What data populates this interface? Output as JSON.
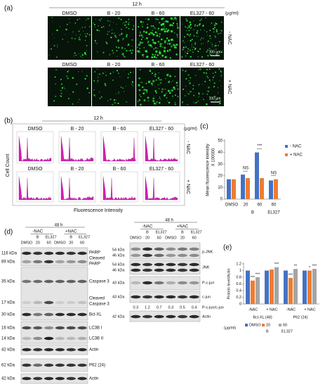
{
  "panels": {
    "a": {
      "label": "(a)",
      "time": "12 h",
      "columns": [
        "DMSO",
        "B - 20",
        "B - 60",
        "EL327 - 60"
      ],
      "unit": "(µg/ml)",
      "rows": [
        "- NAC",
        "+ NAC"
      ],
      "scale_bar": "100 µm"
    },
    "b": {
      "label": "(b)",
      "time": "12 h",
      "columns": [
        "DMSO",
        "B - 20",
        "B - 60",
        "EL327 - 60"
      ],
      "unit": "(µg/ml)",
      "rows": [
        "- NAC",
        "+ NAC"
      ],
      "y_label": "Cell Count",
      "x_label": "Fluorescence Intensity"
    },
    "c": {
      "label": "(c)"
    },
    "d": {
      "label": "(d)",
      "left": {
        "time": "48 h",
        "groups": [
          "-NAC",
          "+NAC"
        ],
        "treatments": [
          "B",
          "EL327"
        ],
        "lanes": [
          "DMSO",
          "20",
          "60",
          "DMSO",
          "20",
          "60"
        ],
        "kda": [
          "116 kDa",
          "89 kDa",
          "35 kDa",
          "17 kDa",
          "30 kDa",
          "16 kDa",
          "14 kDa",
          "42 kDa",
          "62 kDa",
          "42 kDa"
        ],
        "proteins": [
          "PARP",
          "Cleaved",
          "PARP",
          "Caspase 3",
          "Cleaved",
          "Caspase 3",
          "Bcl-XL",
          "LC3B I",
          "LC3B II",
          "Actin",
          "P62 (24)",
          "Actin"
        ]
      },
      "right": {
        "time": "48 h",
        "groups": [
          "-NAC",
          "+NAC"
        ],
        "treatments": [
          "B",
          "EL327"
        ],
        "lanes": [
          "DMSO",
          "20",
          "60",
          "DMSO",
          "20",
          "60"
        ],
        "kda": [
          "54 kDa",
          "46 kDa",
          "54 kDa",
          "46 kDa",
          "43 kDa",
          "43 kDa",
          "42 kDa"
        ],
        "proteins": [
          "p-JNK",
          "JNK",
          "P-c-jun",
          "c-jun",
          "P-c-jun/c-jun",
          "Actin"
        ],
        "ratios": [
          0.3,
          1.2,
          0.7,
          0.3,
          0.5,
          0.4
        ]
      }
    },
    "e": {
      "label": "(e)"
    }
  },
  "chart_data": [
    {
      "type": "bar",
      "y_label": "Mean fluorescence intensity",
      "y_multiplier": "X 100000",
      "categories": [
        "DMSO",
        "20",
        "60",
        "60"
      ],
      "category_groups": [
        "B",
        "EL327"
      ],
      "series": [
        {
          "name": "- NAC",
          "color": "#4472c4",
          "values": [
            17,
            21,
            40,
            16
          ]
        },
        {
          "name": "+ NAC",
          "color": "#ed7d31",
          "values": [
            17,
            18,
            18,
            17
          ]
        }
      ],
      "ylim": [
        0,
        50
      ],
      "yticks": [
        0,
        10,
        20,
        30,
        40,
        50
      ],
      "legend": "right",
      "annotations": [
        "NS",
        "***",
        "NS"
      ]
    },
    {
      "type": "bar",
      "y_label": "Protein level/Actin",
      "categories": [
        "-NAC",
        "+ NAC",
        "-NAC",
        "+ NAC"
      ],
      "category_groups": [
        "Bcl-XL (48)",
        "P62 (24)"
      ],
      "series": [
        {
          "name": "DMSO",
          "color": "#4472c4",
          "values": [
            1,
            1,
            1,
            1
          ]
        },
        {
          "name": "20",
          "color": "#ed7d31",
          "values": [
            0.7,
            1.03,
            0.78,
            1
          ]
        },
        {
          "name": "60",
          "color": "#a5a5a5",
          "values": [
            0.8,
            1.1,
            1.05,
            1.05
          ]
        }
      ],
      "unit": "(µg/ml)",
      "legend_groups": [
        "B",
        "EL327"
      ],
      "ylim": [
        0,
        1.2
      ],
      "yticks": [
        0,
        0.2,
        0.4,
        0.6,
        0.8,
        1,
        1.2
      ],
      "legend": "bottom",
      "annotations": [
        "***",
        "***",
        "***",
        "***",
        "**",
        "*",
        "***"
      ]
    }
  ]
}
